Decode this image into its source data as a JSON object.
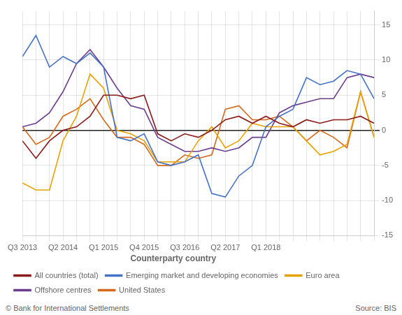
{
  "chart_data": {
    "type": "line",
    "categories": [
      "Q3 2013",
      null,
      null,
      "Q2 2014",
      null,
      null,
      "Q1 2015",
      null,
      null,
      "Q4 2015",
      null,
      null,
      "Q3 2016",
      null,
      null,
      "Q2 2017",
      null,
      null,
      "Q1 2018",
      null,
      null,
      null,
      null,
      null,
      null,
      null,
      null
    ],
    "series": [
      {
        "name": "All countries (total)",
        "color": "#8b1a1a",
        "values": [
          -1.5,
          -4.0,
          -1.5,
          0.0,
          0.5,
          2.0,
          5.0,
          5.0,
          4.5,
          5.0,
          -0.5,
          -1.5,
          -0.5,
          -1.0,
          0.0,
          1.5,
          2.0,
          1.0,
          2.0,
          1.0,
          0.5,
          1.5,
          1.0,
          1.5,
          1.5,
          2.0,
          1.0
        ]
      },
      {
        "name": "Emerging market and developing economies",
        "color": "#4472c4",
        "values": [
          10.5,
          13.5,
          9.0,
          10.5,
          9.5,
          11.0,
          9.0,
          -1.0,
          -1.5,
          -0.5,
          -4.5,
          -5.0,
          -4.5,
          -3.5,
          -9.0,
          -9.5,
          -6.5,
          -5.0,
          0.5,
          2.0,
          3.0,
          7.5,
          6.5,
          7.0,
          8.5,
          8.0,
          4.5
        ]
      },
      {
        "name": "Euro area",
        "color": "#e8a200",
        "values": [
          -7.5,
          -8.5,
          -8.5,
          -1.5,
          2.0,
          8.0,
          6.0,
          0.0,
          -0.5,
          -1.5,
          -4.5,
          -4.5,
          -4.5,
          -1.5,
          0.5,
          -2.5,
          -1.5,
          1.0,
          0.5,
          0.5,
          0.5,
          -1.5,
          -3.5,
          -3.0,
          -2.0,
          5.5,
          -1.0
        ]
      },
      {
        "name": "Offshore centres",
        "color": "#6a3d8f",
        "values": [
          0.5,
          1.0,
          2.5,
          5.5,
          9.5,
          11.5,
          9.0,
          6.0,
          3.5,
          3.0,
          -1.0,
          -2.0,
          -3.0,
          -3.0,
          -2.5,
          -3.0,
          -2.5,
          -1.0,
          -1.0,
          2.5,
          3.5,
          4.0,
          4.5,
          4.5,
          7.5,
          8.0,
          7.5
        ]
      },
      {
        "name": "United States",
        "color": "#d4691c",
        "values": [
          0.5,
          -2.0,
          -1.0,
          2.0,
          3.0,
          4.5,
          1.5,
          -1.0,
          -1.0,
          -2.0,
          -5.0,
          -5.0,
          -3.5,
          -4.0,
          -3.5,
          3.0,
          3.5,
          1.5,
          1.5,
          2.0,
          0.5,
          -1.5,
          0.0,
          -1.0,
          -2.5,
          5.5,
          -1.0
        ]
      }
    ],
    "ylim": [
      -15,
      17
    ],
    "yticks": [
      -15,
      -10,
      -5,
      0,
      5,
      10,
      15
    ],
    "grid": true,
    "legend": "bottom",
    "legend_title": "Counterparty country",
    "annotations": [
      "© Bank for International Settlements",
      "Source: BIS"
    ]
  }
}
